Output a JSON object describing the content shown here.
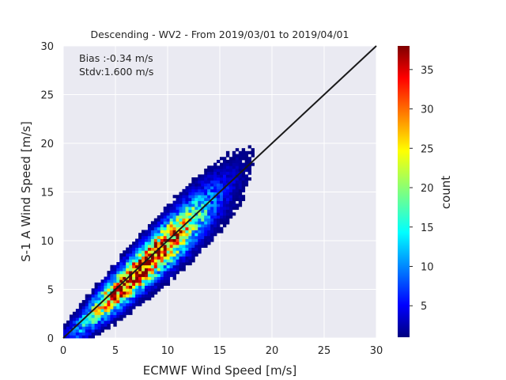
{
  "chart_data": {
    "type": "heatmap",
    "title": "Descending - WV2 - From 2019/03/01 to 2019/04/01",
    "xlabel": "ECMWF Wind Speed [m/s]",
    "ylabel": "S-1 A Wind Speed [m/s]",
    "xlim": [
      0,
      30
    ],
    "ylim": [
      0,
      30
    ],
    "xticks": [
      "0",
      "5",
      "10",
      "15",
      "20",
      "25",
      "30"
    ],
    "yticks": [
      "0",
      "5",
      "10",
      "15",
      "20",
      "25",
      "30"
    ],
    "grid": true,
    "colormap": "jet",
    "colorbar": {
      "label": "count",
      "range": [
        1,
        38
      ],
      "ticks": [
        "5",
        "10",
        "15",
        "20",
        "25",
        "30",
        "35"
      ]
    },
    "annotations": {
      "bias": "Bias :-0.34 m/s",
      "stdv": "Stdv:1.600 m/s"
    },
    "reference_line": {
      "type": "y=x",
      "color": "#1a1a1a"
    },
    "density_model": {
      "core_x": [
        6.5,
        8.5
      ],
      "core_y_offset": -0.34,
      "spread": 1.6,
      "peak_count": 38
    },
    "colors": {
      "plot_background": "#eaeaf2",
      "grid": "#ffffff",
      "text": "#262626"
    }
  }
}
